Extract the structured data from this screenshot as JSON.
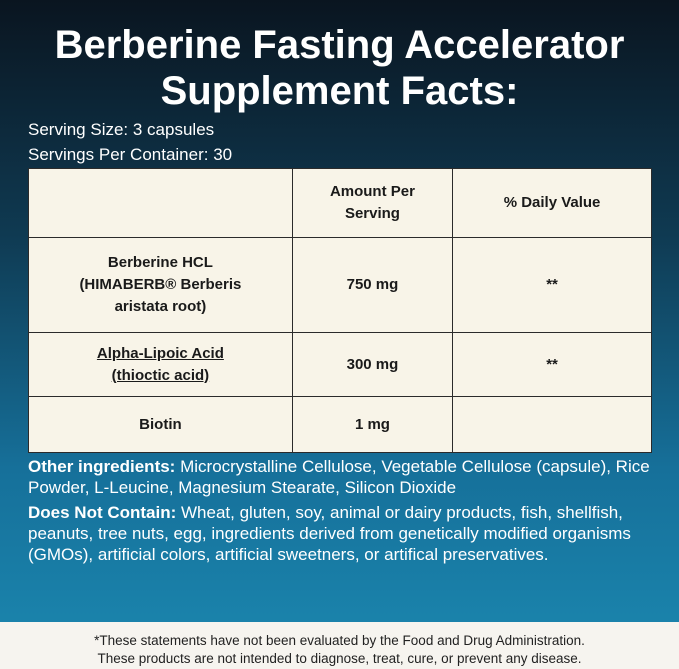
{
  "header": {
    "title_lines": [
      "Berberine Fasting Accelerator",
      "Supplement Facts:"
    ]
  },
  "serving": {
    "size": "Serving Size: 3 capsules",
    "per_container": "Servings Per Container: 30"
  },
  "table": {
    "header": [
      "",
      "Amount Per Serving",
      "% Daily Value"
    ],
    "rows": [
      [
        "Berberine HCL (HIMABERB® Berberis aristata root)",
        "750 mg",
        "**"
      ],
      [
        "Alpha-Lipoic Acid (thioctic acid)",
        "300 mg",
        "**"
      ],
      [
        "Biotin",
        "1 mg",
        ""
      ]
    ]
  },
  "other_ingredients": {
    "label": "Other ingredients:",
    "text": "Microcrystalline Cellulose, Vegetable Cellulose (capsule), Rice Powder, L-Leucine, Magnesium Stearate, Silicon Dioxide"
  },
  "does_not_contain": {
    "label": "Does Not Contain:",
    "text": "Wheat, gluten, soy, animal or dairy products, fish, shellfish, peanuts, tree nuts, egg, ingredients derived from genetically modified organisms (GMOs), artificial colors, artificial sweetners, or artifical preservatives."
  },
  "footer": {
    "lines": [
      "*These statements have not been evaluated by the Food and Drug Administration.",
      "These products are not intended to diagnose, treat, cure, or prevent any disease."
    ]
  }
}
